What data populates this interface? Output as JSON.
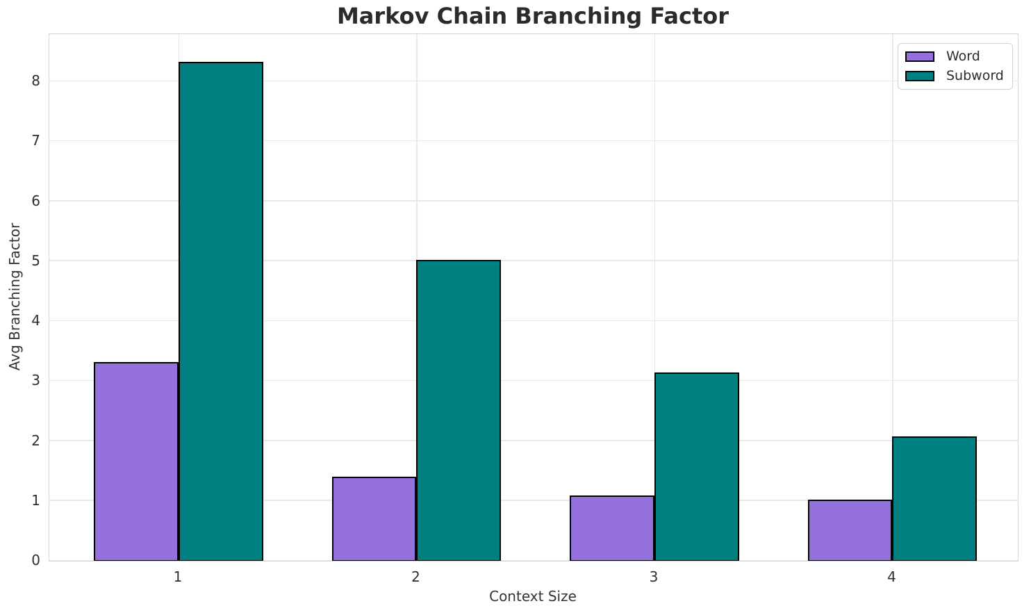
{
  "chart_data": {
    "type": "bar",
    "title": "Markov Chain Branching Factor",
    "xlabel": "Context Size",
    "ylabel": "Avg Branching Factor",
    "categories": [
      "1",
      "2",
      "3",
      "4"
    ],
    "x": [
      1,
      2,
      3,
      4
    ],
    "series": [
      {
        "name": "Word",
        "color": "#9370DB",
        "values": [
          3.32,
          1.4,
          1.09,
          1.02
        ]
      },
      {
        "name": "Subword",
        "color": "#008080",
        "values": [
          8.33,
          5.02,
          3.14,
          2.08
        ]
      }
    ],
    "bar_width": 0.355,
    "xlim": [
      0.457,
      4.527
    ],
    "ylim": [
      0,
      8.79
    ],
    "yticks": [
      0,
      1,
      2,
      3,
      4,
      5,
      6,
      7,
      8
    ],
    "grid": true,
    "grid_axis": "both",
    "legend_position": "upper right",
    "bar_edge_color": "#000000",
    "grid_color": "#e9e9e9",
    "spine_color": "#d4d4d4",
    "background_color": "#ffffff",
    "text_color": "#2b2b2b"
  }
}
